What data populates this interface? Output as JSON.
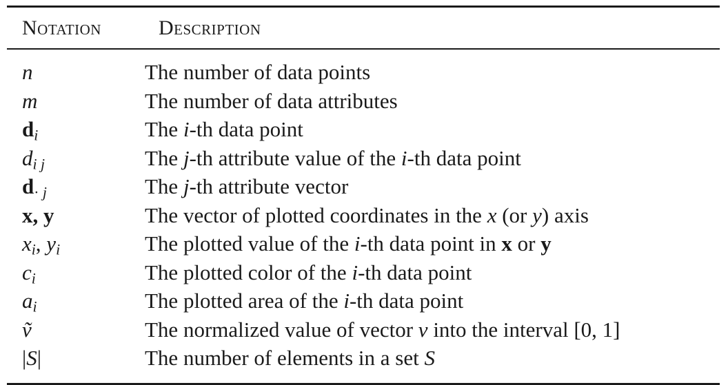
{
  "header": {
    "col1": "Notation",
    "col2": "Description"
  },
  "rows": [
    {
      "notation": "n",
      "description": "The number of data points"
    },
    {
      "notation": "m",
      "description": "The number of data attributes"
    },
    {
      "notation": "d_i",
      "description": "The i-th data point"
    },
    {
      "notation": "d_ij",
      "description": "The j-th attribute value of the i-th data point"
    },
    {
      "notation": "d_·j",
      "description": "The j-th attribute vector"
    },
    {
      "notation": "x, y",
      "description": "The vector of plotted coordinates in the x (or y) axis"
    },
    {
      "notation": "x_i, y_i",
      "description": "The plotted value of the i-th data point in x or y"
    },
    {
      "notation": "c_i",
      "description": "The plotted color of the i-th data point"
    },
    {
      "notation": "a_i",
      "description": "The plotted area of the i-th data point"
    },
    {
      "notation": "ṽ",
      "description": "The normalized value of vector v into the interval [0, 1]"
    },
    {
      "notation": "|S|",
      "description": "The number of elements in a set S"
    }
  ]
}
